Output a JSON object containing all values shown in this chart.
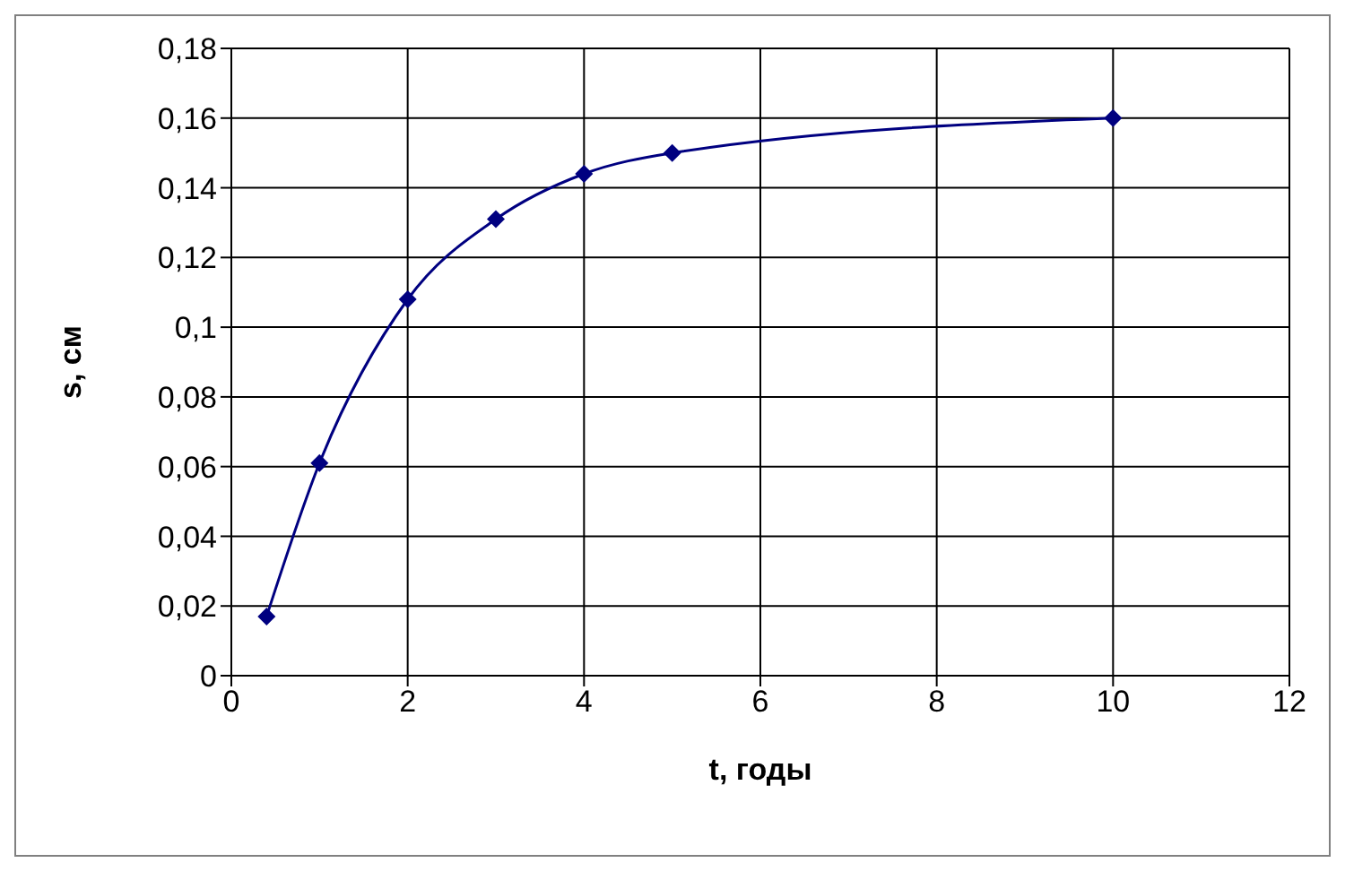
{
  "chart_data": {
    "type": "line",
    "xlabel": "t, годы",
    "ylabel": "s, см",
    "x": [
      0.4,
      1,
      2,
      3,
      4,
      5,
      10
    ],
    "series": [
      {
        "color": "#000080",
        "values": [
          0.017,
          0.061,
          0.108,
          0.131,
          0.144,
          0.15,
          0.16
        ]
      }
    ],
    "xlim": [
      0,
      12
    ],
    "xticks": [
      0,
      2,
      4,
      6,
      8,
      10,
      12
    ],
    "ylim": [
      0,
      0.18
    ],
    "yticks": [
      0,
      {
        "value": 0.02,
        "label": "0,02"
      },
      {
        "value": 0.04,
        "label": "0,04"
      },
      {
        "value": 0.06,
        "label": "0,06"
      },
      {
        "value": 0.08,
        "label": "0,08"
      },
      {
        "value": 0.1,
        "label": "0,1"
      },
      {
        "value": 0.12,
        "label": "0,12"
      },
      {
        "value": 0.14,
        "label": "0,14"
      },
      {
        "value": 0.16,
        "label": "0,16"
      },
      {
        "value": 0.18,
        "label": "0,18"
      }
    ],
    "grid": true,
    "marker": "diamond",
    "line_style": "solid",
    "legend": false
  }
}
